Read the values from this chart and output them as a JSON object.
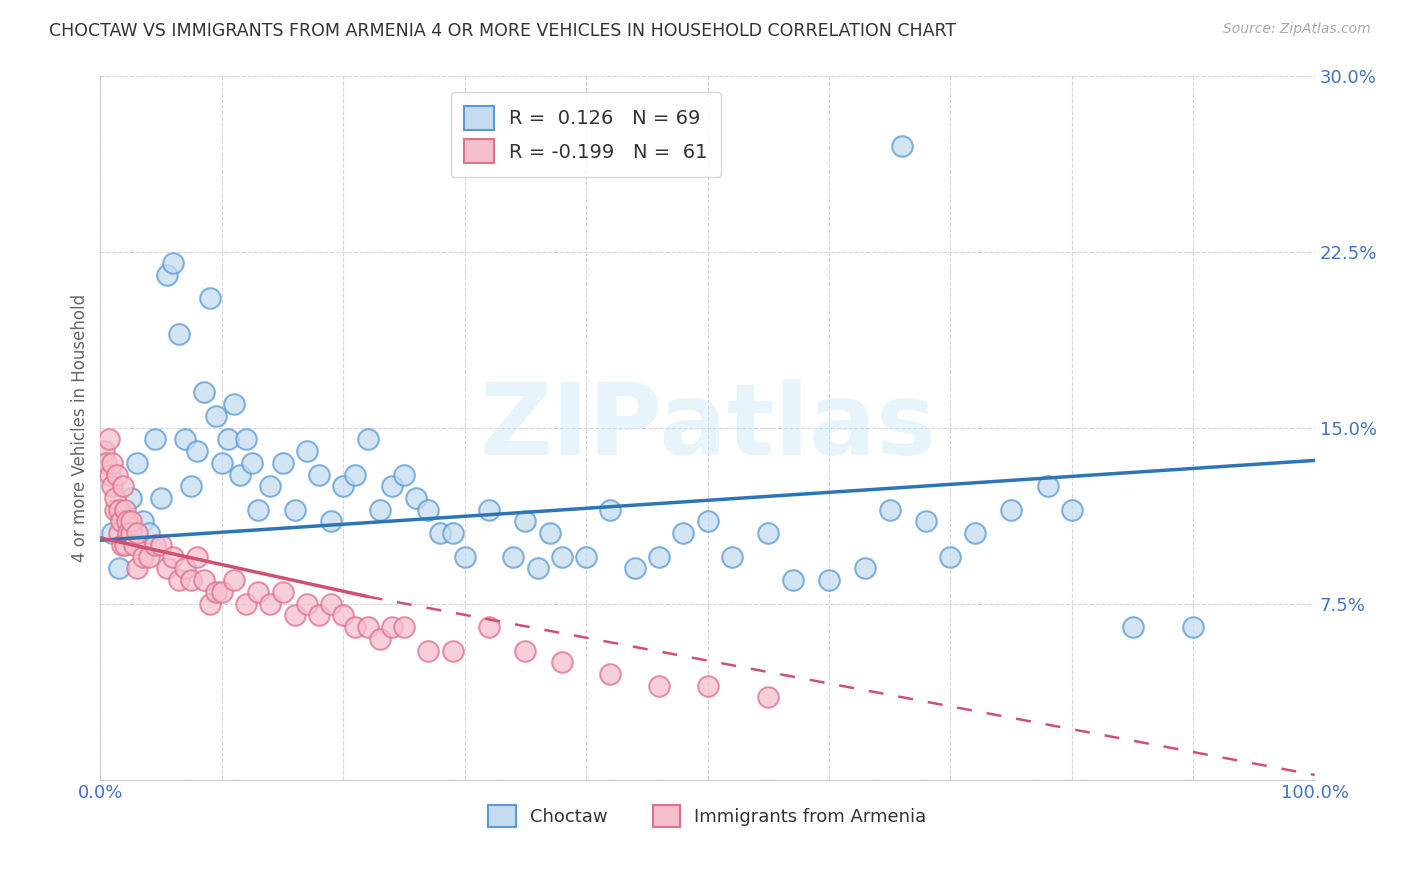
{
  "title": "CHOCTAW VS IMMIGRANTS FROM ARMENIA 4 OR MORE VEHICLES IN HOUSEHOLD CORRELATION CHART",
  "source": "Source: ZipAtlas.com",
  "ylabel": "4 or more Vehicles in Household",
  "xlim": [
    0,
    100
  ],
  "ylim": [
    0,
    30
  ],
  "blue_R": 0.126,
  "blue_N": 69,
  "pink_R": -0.199,
  "pink_N": 61,
  "blue_scatter_color": "#c5dcf0",
  "blue_edge_color": "#5b9bd5",
  "blue_line_color": "#2e75b6",
  "pink_scatter_color": "#f5c0cc",
  "pink_edge_color": "#e07090",
  "pink_line_color": "#d05070",
  "legend_label_blue": "Choctaw",
  "legend_label_pink": "Immigrants from Armenia",
  "watermark_text": "ZIPatlas",
  "blue_x": [
    1.0,
    1.5,
    2.0,
    2.5,
    3.0,
    3.5,
    4.0,
    4.5,
    5.0,
    5.5,
    6.0,
    6.5,
    7.0,
    7.5,
    8.0,
    8.5,
    9.0,
    9.5,
    10.0,
    10.5,
    11.0,
    11.5,
    12.0,
    12.5,
    13.0,
    14.0,
    15.0,
    16.0,
    17.0,
    18.0,
    19.0,
    20.0,
    21.0,
    22.0,
    23.0,
    24.0,
    25.0,
    26.0,
    27.0,
    28.0,
    29.0,
    30.0,
    32.0,
    34.0,
    35.0,
    36.0,
    37.0,
    38.0,
    40.0,
    42.0,
    44.0,
    46.0,
    48.0,
    50.0,
    52.0,
    55.0,
    57.0,
    60.0,
    63.0,
    65.0,
    66.0,
    68.0,
    70.0,
    72.0,
    75.0,
    78.0,
    80.0,
    85.0,
    90.0
  ],
  "blue_y": [
    10.5,
    9.0,
    11.0,
    12.0,
    13.5,
    11.0,
    10.5,
    14.5,
    12.0,
    21.5,
    22.0,
    19.0,
    14.5,
    12.5,
    14.0,
    16.5,
    20.5,
    15.5,
    13.5,
    14.5,
    16.0,
    13.0,
    14.5,
    13.5,
    11.5,
    12.5,
    13.5,
    11.5,
    14.0,
    13.0,
    11.0,
    12.5,
    13.0,
    14.5,
    11.5,
    12.5,
    13.0,
    12.0,
    11.5,
    10.5,
    10.5,
    9.5,
    11.5,
    9.5,
    11.0,
    9.0,
    10.5,
    9.5,
    9.5,
    11.5,
    9.0,
    9.5,
    10.5,
    11.0,
    9.5,
    10.5,
    8.5,
    8.5,
    9.0,
    11.5,
    27.0,
    11.0,
    9.5,
    10.5,
    11.5,
    12.5,
    11.5,
    6.5,
    6.5
  ],
  "pink_x": [
    0.3,
    0.5,
    0.7,
    0.8,
    1.0,
    1.0,
    1.2,
    1.2,
    1.4,
    1.5,
    1.5,
    1.7,
    1.8,
    1.9,
    2.0,
    2.0,
    2.2,
    2.3,
    2.5,
    2.5,
    2.8,
    3.0,
    3.0,
    3.5,
    4.0,
    4.5,
    5.0,
    5.5,
    6.0,
    6.5,
    7.0,
    7.5,
    8.0,
    8.5,
    9.0,
    9.5,
    10.0,
    11.0,
    12.0,
    13.0,
    14.0,
    15.0,
    16.0,
    17.0,
    18.0,
    19.0,
    20.0,
    21.0,
    22.0,
    23.0,
    24.0,
    25.0,
    27.0,
    29.0,
    32.0,
    35.0,
    38.0,
    42.0,
    46.0,
    50.0,
    55.0
  ],
  "pink_y": [
    14.0,
    13.5,
    14.5,
    13.0,
    12.5,
    13.5,
    11.5,
    12.0,
    13.0,
    10.5,
    11.5,
    11.0,
    10.0,
    12.5,
    10.0,
    11.5,
    11.0,
    10.5,
    10.5,
    11.0,
    10.0,
    10.5,
    9.0,
    9.5,
    9.5,
    10.0,
    10.0,
    9.0,
    9.5,
    8.5,
    9.0,
    8.5,
    9.5,
    8.5,
    7.5,
    8.0,
    8.0,
    8.5,
    7.5,
    8.0,
    7.5,
    8.0,
    7.0,
    7.5,
    7.0,
    7.5,
    7.0,
    6.5,
    6.5,
    6.0,
    6.5,
    6.5,
    5.5,
    5.5,
    6.5,
    5.5,
    5.0,
    4.5,
    4.0,
    4.0,
    3.5
  ],
  "blue_line_x0": 0,
  "blue_line_x1": 100,
  "blue_line_y0": 10.2,
  "blue_line_y1": 13.6,
  "pink_solid_x0": 0,
  "pink_solid_x1": 22,
  "pink_solid_y0": 10.3,
  "pink_solid_y1": 7.8,
  "pink_dash_x0": 22,
  "pink_dash_x1": 100,
  "pink_dash_y0": 7.8,
  "pink_dash_y1": 0.2,
  "background_color": "#ffffff",
  "grid_color": "#cccccc",
  "title_color": "#333333",
  "axis_color": "#4472c4"
}
